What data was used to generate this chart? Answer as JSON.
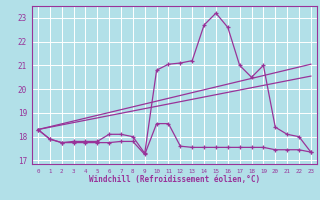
{
  "xlabel": "Windchill (Refroidissement éolien,°C)",
  "xlim": [
    -0.5,
    23.5
  ],
  "ylim": [
    16.85,
    23.5
  ],
  "yticks": [
    17,
    18,
    19,
    20,
    21,
    22,
    23
  ],
  "xticks": [
    0,
    1,
    2,
    3,
    4,
    5,
    6,
    7,
    8,
    9,
    10,
    11,
    12,
    13,
    14,
    15,
    16,
    17,
    18,
    19,
    20,
    21,
    22,
    23
  ],
  "bg_color": "#b2e0e8",
  "grid_color": "#ffffff",
  "line_color": "#993399",
  "curve1_x": [
    0,
    1,
    2,
    3,
    4,
    5,
    6,
    7,
    8,
    9,
    10,
    11,
    12,
    13,
    14,
    15,
    16,
    17,
    18,
    19,
    20,
    21,
    22,
    23
  ],
  "curve1_y": [
    18.3,
    17.9,
    17.75,
    17.75,
    17.75,
    17.75,
    17.75,
    17.8,
    17.8,
    17.25,
    18.55,
    18.55,
    17.6,
    17.55,
    17.55,
    17.55,
    17.55,
    17.55,
    17.55,
    17.55,
    17.45,
    17.45,
    17.45,
    17.35
  ],
  "curve2_x": [
    0,
    1,
    2,
    3,
    4,
    5,
    6,
    7,
    8,
    9,
    10,
    11,
    12,
    13,
    14,
    15,
    16,
    17,
    18,
    19,
    20,
    21,
    22,
    23
  ],
  "curve2_y": [
    18.3,
    17.9,
    17.75,
    17.8,
    17.8,
    17.8,
    18.1,
    18.1,
    18.0,
    17.3,
    20.8,
    21.05,
    21.1,
    21.2,
    22.7,
    23.2,
    22.6,
    21.0,
    20.5,
    21.0,
    18.4,
    18.1,
    18.0,
    17.35
  ],
  "curve3_x": [
    0,
    23
  ],
  "curve3_y": [
    18.3,
    20.55
  ],
  "curve4_x": [
    0,
    23
  ],
  "curve4_y": [
    18.3,
    21.05
  ]
}
